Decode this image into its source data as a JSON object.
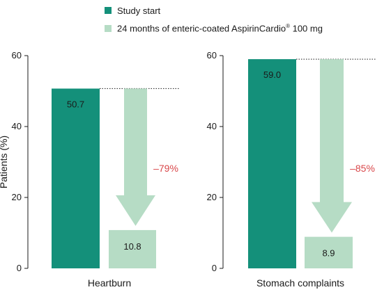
{
  "legend": {
    "items": [
      {
        "label": "Study start",
        "color": "#14907a"
      },
      {
        "label": "24 months of enteric-coated AspirinCardio",
        "superscript": "®",
        "suffix": " 100 mg",
        "color": "#b6dcc5"
      }
    ]
  },
  "colors": {
    "study_start": "#14907a",
    "after_24_months": "#b6dcc5",
    "reduction": "#d9474a"
  },
  "chart_data": [
    {
      "type": "bar",
      "category": "Heartburn",
      "ylabel": "Patients (%)",
      "ylim": [
        0,
        60
      ],
      "yticks": [
        "0",
        "20",
        "40",
        "60"
      ],
      "series": [
        {
          "name": "Study start",
          "value": 50.7,
          "label": "50.7"
        },
        {
          "name": "24 months of enteric-coated AspirinCardio® 100 mg",
          "value": 10.8,
          "label": "10.8"
        }
      ],
      "reduction_label": "–79%"
    },
    {
      "type": "bar",
      "category": "Stomach complaints",
      "ylabel": "",
      "ylim": [
        0,
        60
      ],
      "yticks": [
        "0",
        "20",
        "40",
        "60"
      ],
      "series": [
        {
          "name": "Study start",
          "value": 59.0,
          "label": "59.0"
        },
        {
          "name": "24 months of enteric-coated AspirinCardio® 100 mg",
          "value": 8.9,
          "label": "8.9"
        }
      ],
      "reduction_label": "–85%"
    }
  ]
}
